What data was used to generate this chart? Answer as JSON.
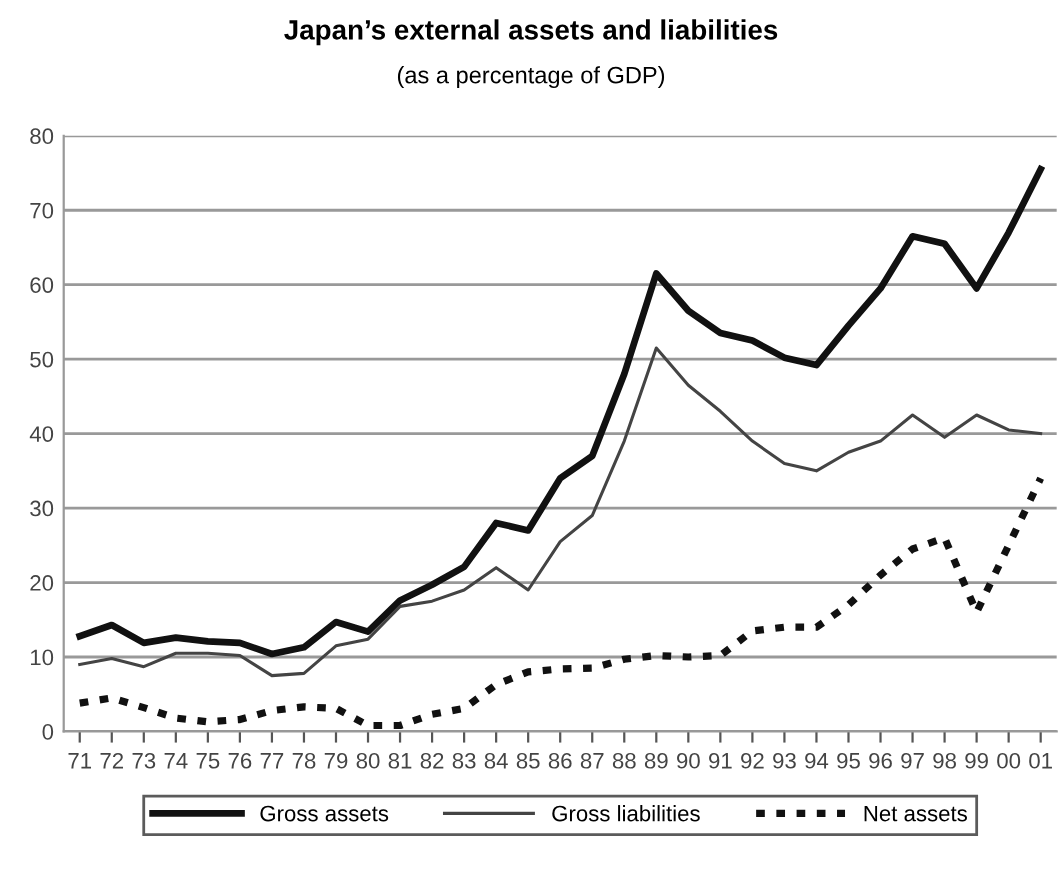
{
  "chart_data": {
    "type": "line",
    "title": "Japan’s external assets and liabilities",
    "subtitle": "(as a percentage of GDP)",
    "categories": [
      "71",
      "72",
      "73",
      "74",
      "75",
      "76",
      "77",
      "78",
      "79",
      "80",
      "81",
      "82",
      "83",
      "84",
      "85",
      "86",
      "87",
      "88",
      "89",
      "90",
      "91",
      "92",
      "93",
      "94",
      "95",
      "96",
      "97",
      "98",
      "99",
      "00",
      "01"
    ],
    "series": [
      {
        "name": "Gross assets",
        "color": "#111111",
        "line_style": "solid",
        "values": [
          12.8,
          14.3,
          11.9,
          12.6,
          12.1,
          11.9,
          10.4,
          11.3,
          14.7,
          13.4,
          17.6,
          19.7,
          22.1,
          28,
          27,
          34,
          37,
          48,
          61.5,
          56.5,
          53.5,
          52.5,
          50.2,
          49.2,
          54.5,
          59.5,
          66.5,
          65.5,
          59.5,
          67,
          75.5
        ]
      },
      {
        "name": "Gross liabilities",
        "color": "#444444",
        "line_style": "solid",
        "values": [
          9,
          9.8,
          8.7,
          10.5,
          10.5,
          10.2,
          7.5,
          7.8,
          11.5,
          12.4,
          16.8,
          17.5,
          19,
          22,
          19,
          25.5,
          29,
          39,
          51.5,
          46.5,
          43,
          39,
          36,
          35,
          37.5,
          39,
          42.5,
          39.5,
          42.5,
          40.5,
          40
        ]
      },
      {
        "name": "Net assets",
        "color": "#111111",
        "line_style": "dotted",
        "values": [
          3.8,
          4.5,
          3.2,
          1.8,
          1.3,
          1.6,
          2.8,
          3.3,
          3.1,
          0.8,
          0.8,
          2.3,
          3.1,
          6.3,
          8,
          8.4,
          8.5,
          9.7,
          10.2,
          10,
          10.2,
          13.5,
          14,
          14,
          17,
          21,
          24.5,
          26,
          16,
          25,
          34
        ]
      }
    ],
    "ylim": [
      0,
      80
    ],
    "yticks": [
      0,
      10,
      20,
      30,
      40,
      50,
      60,
      70,
      80
    ],
    "grid": "y",
    "legend": "bottom",
    "marker": "none"
  }
}
